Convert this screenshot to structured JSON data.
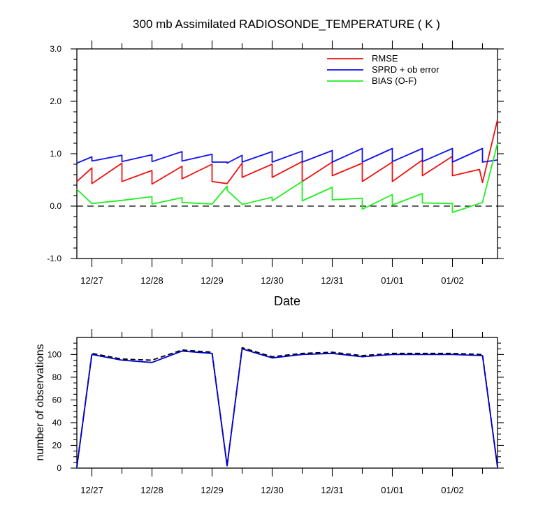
{
  "chart_data": [
    {
      "type": "line",
      "title": "300 mb Assimilated RADIOSONDE_TEMPERATURE ( K )",
      "xlabel": "Date",
      "ylabel": "",
      "ylim": [
        -1.0,
        3.0
      ],
      "xlim": [
        -0.25,
        6.75
      ],
      "x_tick_labels": [
        "12/27",
        "12/28",
        "12/29",
        "12/30",
        "12/31",
        "01/01",
        "01/02"
      ],
      "y_tick_labels": [
        "-1.0",
        "0.0",
        "1.0",
        "2.0",
        "3.0"
      ],
      "zero_line": {
        "y": 0.0,
        "style": "dashed",
        "color": "#000000"
      },
      "legend_position": "top-right",
      "series": [
        {
          "name": "RMSE",
          "color": "#ee1111",
          "x": [
            -0.25,
            0,
            0,
            0.5,
            0.5,
            1,
            1,
            1.5,
            1.5,
            2,
            2,
            2.25,
            2.5,
            2.5,
            3,
            3,
            3.5,
            3.5,
            4,
            4,
            4.5,
            4.5,
            5,
            5,
            5.5,
            5.5,
            6,
            6,
            6.45,
            6.5,
            6.75
          ],
          "y": [
            0.47,
            0.73,
            0.43,
            0.82,
            0.47,
            0.68,
            0.42,
            0.76,
            0.52,
            0.8,
            0.47,
            0.43,
            0.82,
            0.55,
            0.8,
            0.55,
            0.85,
            0.47,
            0.84,
            0.58,
            0.82,
            0.47,
            0.84,
            0.47,
            0.88,
            0.58,
            0.95,
            0.58,
            0.7,
            0.45,
            1.65
          ]
        },
        {
          "name": "SPRD + ob error",
          "color": "#1111ee",
          "x": [
            -0.25,
            0,
            0,
            0.5,
            0.5,
            1,
            1,
            1.5,
            1.5,
            2,
            2,
            2.25,
            2.25,
            2.5,
            2.5,
            3,
            3,
            3.5,
            3.5,
            4,
            4,
            4.5,
            4.5,
            5,
            5,
            5.5,
            5.5,
            6,
            6,
            6.5,
            6.5,
            6.75
          ],
          "y": [
            0.82,
            0.94,
            0.86,
            0.97,
            0.85,
            0.98,
            0.85,
            1.04,
            0.86,
            0.99,
            0.84,
            0.84,
            0.82,
            0.97,
            0.84,
            1.04,
            0.84,
            1.05,
            0.84,
            1.06,
            0.84,
            1.1,
            0.84,
            1.1,
            0.85,
            1.1,
            0.85,
            1.1,
            0.84,
            1.1,
            0.84,
            0.88
          ]
        },
        {
          "name": "BIAS (O-F)",
          "color": "#22ee22",
          "x": [
            -0.25,
            0,
            0.5,
            1,
            1,
            1.5,
            1.5,
            2,
            2.25,
            2.25,
            2.5,
            2.5,
            3,
            3,
            3.5,
            3.5,
            4,
            4,
            4.5,
            4.5,
            5,
            5,
            5.5,
            5.5,
            6,
            6,
            6.5,
            6.75
          ],
          "y": [
            0.32,
            0.05,
            0.11,
            0.18,
            0.04,
            0.16,
            0.07,
            0.04,
            0.38,
            0.3,
            0.04,
            0.03,
            0.17,
            0.1,
            0.47,
            0.1,
            0.36,
            0.12,
            0.15,
            -0.06,
            0.22,
            0.02,
            0.24,
            0.06,
            0.05,
            -0.12,
            0.07,
            1.2
          ]
        }
      ]
    },
    {
      "type": "line",
      "title": "",
      "xlabel": "",
      "ylabel": "number of observations",
      "ylim": [
        0,
        115
      ],
      "xlim": [
        -0.25,
        6.75
      ],
      "x_tick_labels": [
        "12/27",
        "12/28",
        "12/29",
        "12/30",
        "12/31",
        "01/01",
        "01/02"
      ],
      "y_tick_labels": [
        "0",
        "20",
        "40",
        "60",
        "80",
        "100"
      ],
      "series": [
        {
          "name": "observations (dashed)",
          "color": "#000000",
          "style": "dashed",
          "x": [
            -0.25,
            0,
            0.5,
            1,
            1.5,
            2,
            2.25,
            2.5,
            3,
            3.5,
            4,
            4.5,
            5,
            5.5,
            6,
            6.5,
            6.75
          ],
          "y": [
            1,
            101,
            96,
            95,
            104,
            102,
            2,
            106,
            98,
            101,
            102,
            99,
            101,
            101,
            101,
            100,
            1
          ]
        },
        {
          "name": "observations (solid)",
          "color": "#0000cc",
          "style": "solid",
          "x": [
            -0.25,
            0,
            0.5,
            1,
            1.5,
            2,
            2.25,
            2.5,
            3,
            3.5,
            4,
            4.5,
            5,
            5.5,
            6,
            6.5,
            6.75
          ],
          "y": [
            1,
            100,
            95,
            93,
            103,
            101,
            2,
            105,
            97,
            100,
            101,
            98,
            100,
            100,
            100,
            99,
            1
          ]
        }
      ]
    }
  ]
}
